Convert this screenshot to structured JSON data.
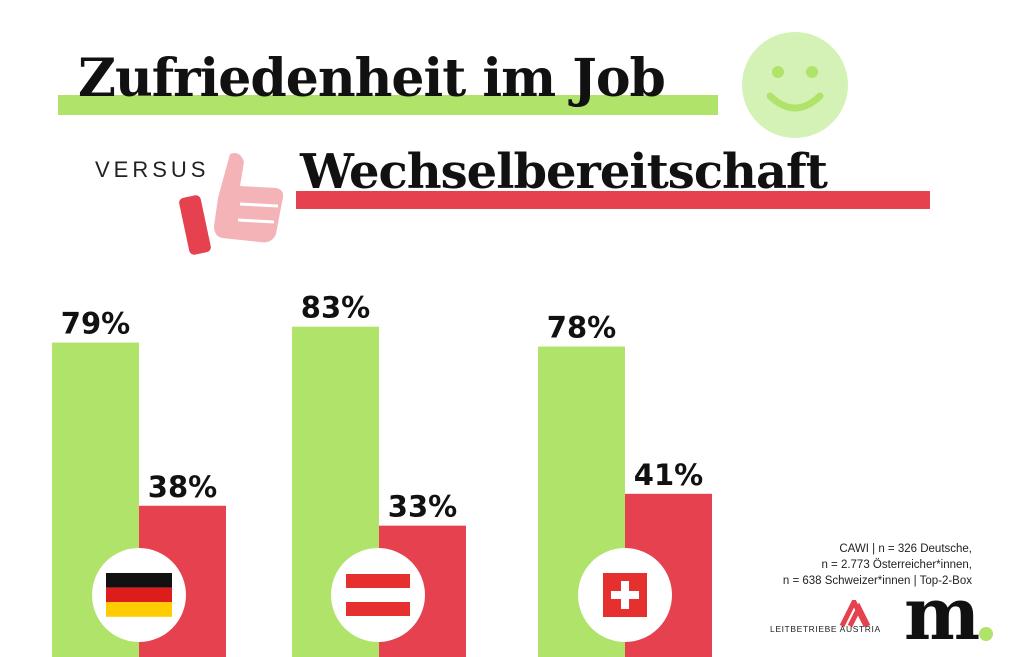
{
  "title_line1": "Zufriedenheit im Job",
  "versus_label": "VERSUS",
  "title_line2": "Wechselbereitschaft",
  "colors": {
    "satisfaction": "#b0e36a",
    "willingness": "#e5414f",
    "smiley": "#d4f2b5",
    "thumb": "#f3b3b7"
  },
  "chart_data": {
    "type": "bar",
    "categories": [
      "Deutschland",
      "Österreich",
      "Schweiz"
    ],
    "category_icons": [
      "flag-germany",
      "flag-austria",
      "flag-switzerland"
    ],
    "series": [
      {
        "key": "zufriedenheit",
        "values": [
          79,
          83,
          78
        ],
        "labels": [
          "79%",
          "83%",
          "78%"
        ]
      },
      {
        "key": "wechselbereitschaft",
        "values": [
          38,
          33,
          41
        ],
        "labels": [
          "38%",
          "33%",
          "41%"
        ]
      }
    ],
    "ylim": [
      0,
      100
    ],
    "grid": false,
    "legend": "none"
  },
  "note_lines": [
    "CAWI | n = 326 Deutsche,",
    "n = 2.773 Österreicher*innen,",
    "n = 638 Schweizer*innen | Top-2-Box"
  ],
  "logos": {
    "leitbetriebe": "LEITBETRIEBE AUSTRIA",
    "m": "m"
  }
}
